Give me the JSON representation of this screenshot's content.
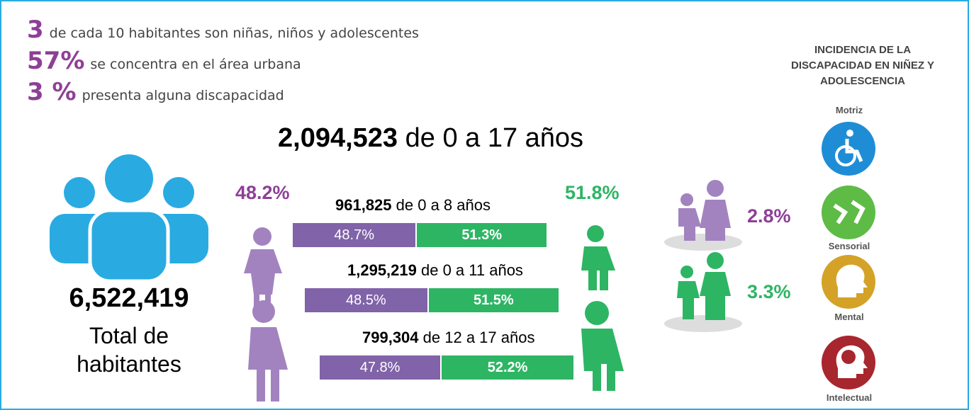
{
  "highlights": [
    {
      "figure": "3",
      "text": "de cada 10 habitantes son niñas, niños y adolescentes"
    },
    {
      "figure": "57%",
      "text": "se concentra en el área urbana"
    },
    {
      "figure": "3 %",
      "text": "presenta alguna discapacidad"
    }
  ],
  "population": {
    "headline_number": "2,094,523",
    "headline_text": "de 0 a 17 años",
    "total": "6,522,419",
    "total_label": "Total de habitantes",
    "girls_share": "48.2%",
    "boys_share": "51.8%"
  },
  "age_groups": [
    {
      "number": "961,825",
      "text": "de 0 a 8 años",
      "girls": {
        "value": 48.7,
        "label": "48.7%"
      },
      "boys": {
        "value": 51.3,
        "label": "51.3%"
      }
    },
    {
      "number": "1,295,219",
      "text": "de 0 a 11 años",
      "girls": {
        "value": 48.5,
        "label": "48.5%"
      },
      "boys": {
        "value": 51.5,
        "label": "51.5%"
      }
    },
    {
      "number": "799,304",
      "text": "de 12 a 17 años",
      "girls": {
        "value": 47.8,
        "label": "47.8%"
      },
      "boys": {
        "value": 52.2,
        "label": "52.2%"
      }
    }
  ],
  "disability": {
    "title": "INCIDENCIA DE LA DISCAPACIDAD EN NIÑEZ Y ADOLESCENCIA",
    "girls": "2.8%",
    "boys": "3.3%",
    "types": [
      "Motriz",
      "Sensorial",
      "Mental",
      "Intelectual"
    ]
  }
}
